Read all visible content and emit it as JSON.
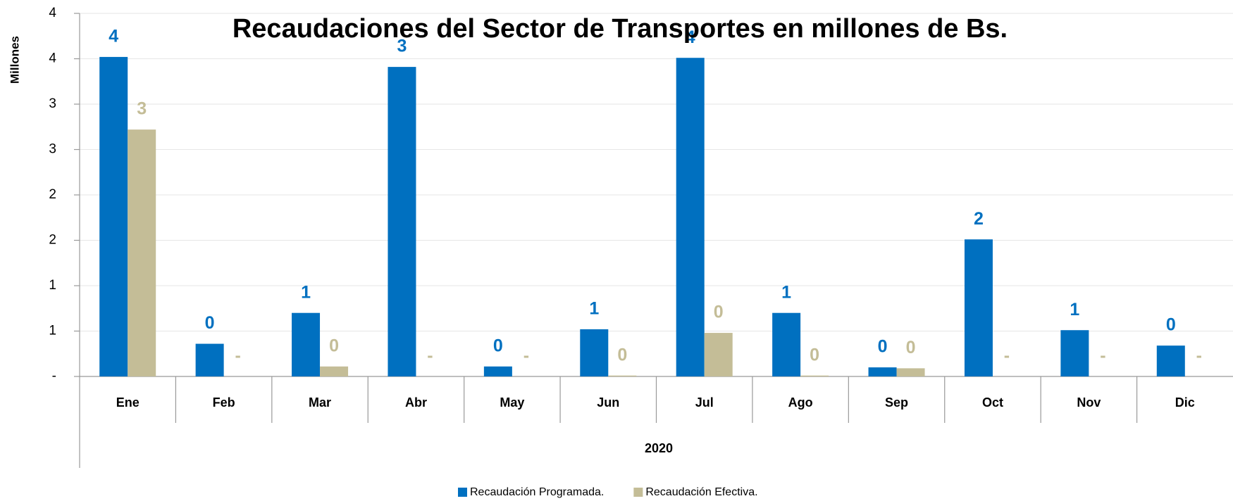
{
  "chart_data": {
    "type": "bar",
    "title": "Recaudaciones del Sector de Transportes en millones de Bs.",
    "y_label": "Millones",
    "x_group_label": "2020",
    "categories": [
      "Ene",
      "Feb",
      "Mar",
      "Abr",
      "May",
      "Jun",
      "Jul",
      "Ago",
      "Sep",
      "Oct",
      "Nov",
      "Dic"
    ],
    "series": [
      {
        "name": "Recaudación Programada.",
        "color": "#0070c0",
        "values": [
          3.52,
          0.36,
          0.7,
          3.41,
          0.11,
          0.52,
          3.51,
          0.7,
          0.1,
          1.51,
          0.51,
          0.34
        ],
        "value_labels": [
          "4",
          "0",
          "1",
          "3",
          "0",
          "1",
          "4",
          "1",
          "0",
          "2",
          "1",
          "0"
        ]
      },
      {
        "name": "Recaudación Efectiva.",
        "color": "#c4bd97",
        "values": [
          2.72,
          0,
          0.11,
          0,
          0,
          0.01,
          0.48,
          0.01,
          0.09,
          0,
          0,
          0
        ],
        "value_labels": [
          "3",
          "-",
          "0",
          "-",
          "-",
          "0",
          "0",
          "0",
          "0",
          "-",
          "-",
          "-"
        ]
      }
    ],
    "ylim": [
      0,
      4
    ],
    "yticks": [
      {
        "value": 0,
        "label": "-"
      },
      {
        "value": 0.5,
        "label": "1"
      },
      1,
      {
        "value": 1.5,
        "label": "2"
      },
      2,
      {
        "value": 2.5,
        "label": "3"
      },
      3,
      {
        "value": 3.5,
        "label": "4"
      },
      4
    ],
    "grid": true,
    "legend": "bottom"
  }
}
